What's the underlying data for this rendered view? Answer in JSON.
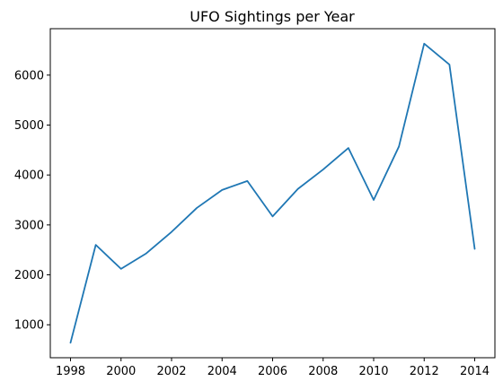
{
  "chart_data": {
    "type": "line",
    "title": "UFO Sightings per Year",
    "xlabel": "",
    "ylabel": "",
    "x": [
      1998,
      1999,
      2000,
      2001,
      2002,
      2003,
      2004,
      2005,
      2006,
      2007,
      2008,
      2009,
      2010,
      2011,
      2012,
      2013,
      2014
    ],
    "series": [
      {
        "values": [
          640,
          2600,
          2120,
          2430,
          2860,
          3340,
          3700,
          3880,
          3170,
          3720,
          4110,
          4540,
          3500,
          4570,
          6630,
          6210,
          2520
        ],
        "color": "#1f77b4"
      }
    ],
    "xlim": [
      1997.2,
      2014.8
    ],
    "ylim": [
      340,
      6930
    ],
    "xticks": [
      1998,
      2000,
      2002,
      2004,
      2006,
      2008,
      2010,
      2012,
      2014
    ],
    "yticks": [
      1000,
      2000,
      3000,
      4000,
      5000,
      6000
    ],
    "grid": false,
    "legend": "none"
  }
}
